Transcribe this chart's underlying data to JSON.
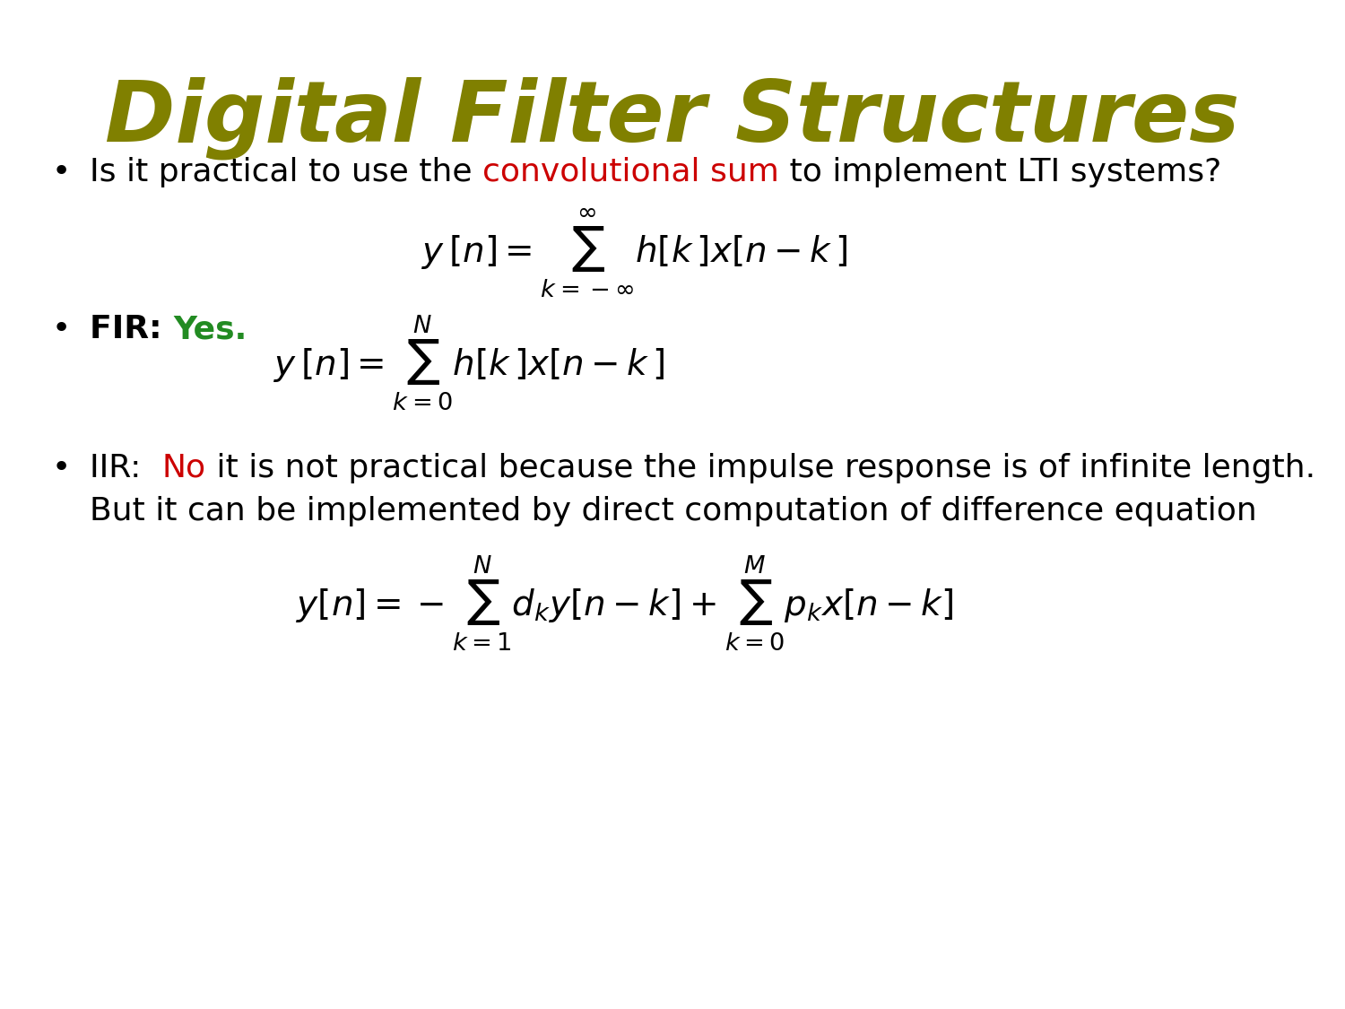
{
  "title": "Digital Filter Structures",
  "title_color": "#808000",
  "title_fontsize": 68,
  "background_color": "#ffffff",
  "text_fontsize": 26,
  "math_fontsize": 28,
  "small_math_fontsize": 26,
  "bullet_char": "•",
  "bullet1_parts": [
    {
      "text": "Is it practical to use the ",
      "color": "#000000"
    },
    {
      "text": "convolutional sum",
      "color": "#cc0000"
    },
    {
      "text": " to implement LTI systems?",
      "color": "#000000"
    }
  ],
  "bullet1_math": "$y\\,[n]=\\sum_{k=-\\infty}^{\\infty}h[k\\,]x[n-k\\,]$",
  "bullet2_label_parts": [
    {
      "text": "FIR: ",
      "color": "#000000"
    },
    {
      "text": "Yes.",
      "color": "#228B22"
    }
  ],
  "bullet2_math": "$y\\,[n]=\\sum_{k=0}^{N}h[k\\,]x[n-k\\,]$",
  "bullet3_parts": [
    {
      "text": "IIR:  ",
      "color": "#000000"
    },
    {
      "text": "No",
      "color": "#cc0000"
    },
    {
      "text": " it is not practical because the impulse response is of infinite length.",
      "color": "#000000"
    }
  ],
  "bullet3_line2": "But it can be implemented by direct computation of difference equation",
  "bullet3_math": "$y[n]=-\\sum_{k=1}^{N}d_k y[n-k]+\\sum_{k=0}^{M}p_k x[n-k]$"
}
